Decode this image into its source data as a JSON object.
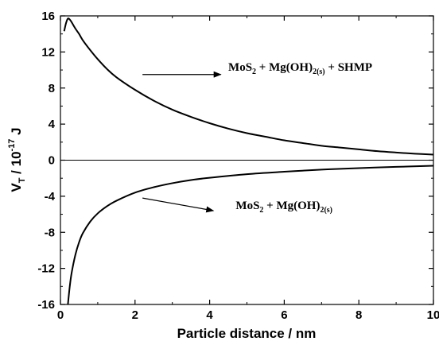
{
  "chart_data": {
    "type": "line",
    "xlabel": "Particle distance / nm",
    "ylabel": {
      "base": "V",
      "base_sub": "T",
      "mid": " / 10",
      "exp": "-17",
      "unit": " J"
    },
    "xlim": [
      0,
      10
    ],
    "ylim": [
      -16,
      16
    ],
    "x_ticks": [
      "0",
      "2",
      "4",
      "6",
      "8",
      "10"
    ],
    "y_ticks": [
      "-16",
      "-12",
      "-8",
      "-4",
      "0",
      "4",
      "8",
      "12",
      "16"
    ],
    "grid": false,
    "series": [
      {
        "x": [
          0.1,
          0.15,
          0.2,
          0.25,
          0.3,
          0.4,
          0.5,
          0.6,
          0.8,
          1.0,
          1.25,
          1.5,
          2.0,
          2.5,
          3.0,
          3.5,
          4.0,
          4.5,
          5.0,
          5.5,
          6.0,
          6.5,
          7.0,
          7.5,
          8.0,
          8.5,
          9.0,
          9.5,
          10.0
        ],
        "y": [
          14.3,
          15.2,
          15.7,
          15.6,
          15.3,
          14.6,
          14.0,
          13.3,
          12.2,
          11.2,
          10.1,
          9.2,
          7.8,
          6.6,
          5.6,
          4.8,
          4.1,
          3.5,
          3.0,
          2.6,
          2.2,
          1.9,
          1.6,
          1.4,
          1.2,
          1.0,
          0.85,
          0.72,
          0.62
        ]
      },
      {
        "x": [
          0.2,
          0.25,
          0.3,
          0.4,
          0.5,
          0.6,
          0.8,
          1.0,
          1.25,
          1.5,
          2.0,
          2.5,
          3.0,
          3.5,
          4.0,
          5.0,
          6.0,
          7.0,
          8.0,
          9.0,
          10.0
        ],
        "y": [
          -16.0,
          -14.0,
          -12.5,
          -10.5,
          -9.1,
          -8.1,
          -6.8,
          -5.9,
          -5.1,
          -4.5,
          -3.6,
          -3.0,
          -2.55,
          -2.2,
          -1.95,
          -1.55,
          -1.28,
          -1.05,
          -0.88,
          -0.74,
          -0.62
        ]
      }
    ],
    "annotations": [
      {
        "parts": [
          {
            "t": "MoS"
          },
          {
            "t": "2",
            "sub": true
          },
          {
            "t": " + Mg(OH)"
          },
          {
            "t": "2(s)",
            "sub": true
          },
          {
            "t": " + SHMP"
          }
        ],
        "arrow_from": [
          2.2,
          9.5
        ],
        "arrow_to": [
          4.3,
          9.5
        ],
        "text_at": [
          4.5,
          9.9
        ]
      },
      {
        "parts": [
          {
            "t": "MoS"
          },
          {
            "t": "2",
            "sub": true
          },
          {
            "t": " + Mg(OH)"
          },
          {
            "t": "2(s)",
            "sub": true
          }
        ],
        "arrow_from": [
          2.2,
          -4.2
        ],
        "arrow_to": [
          4.1,
          -5.6
        ],
        "text_at": [
          4.7,
          -5.4
        ]
      }
    ]
  }
}
